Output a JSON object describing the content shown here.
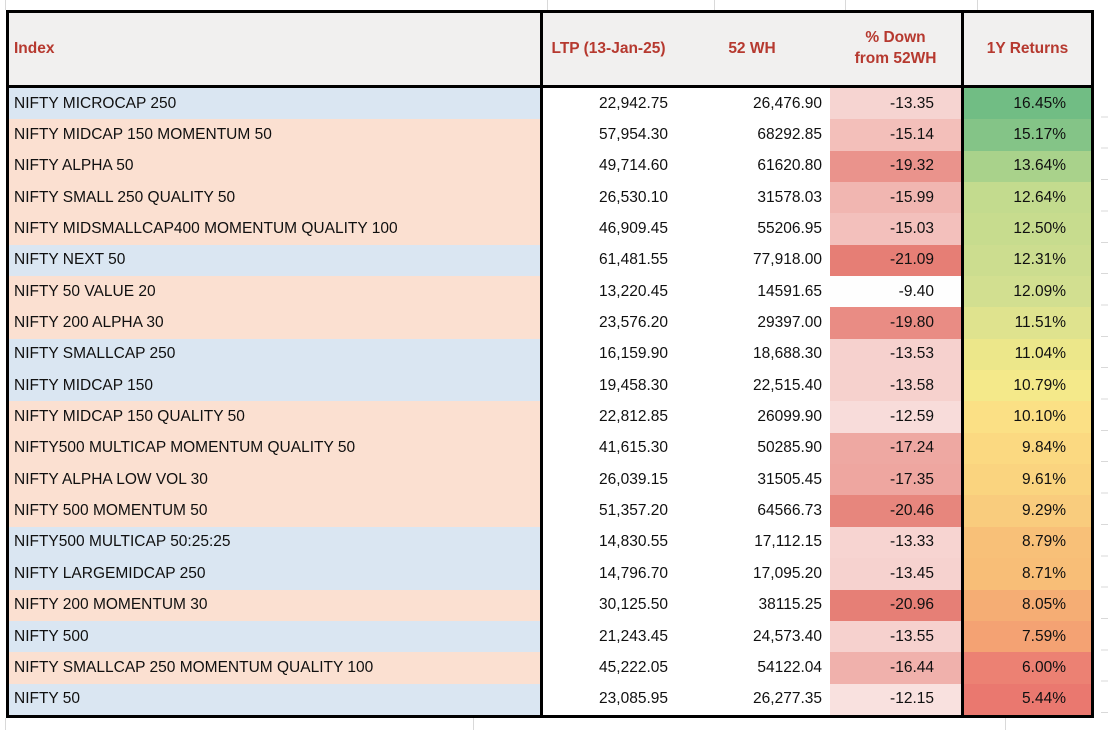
{
  "table": {
    "headers": {
      "index": "Index",
      "ltp": "LTP (13-Jan-25)",
      "wh52": "52 WH",
      "pct_down": "% Down\nfrom 52WH",
      "returns_1y": "1Y Returns"
    },
    "rows": [
      {
        "name": "NIFTY MICROCAP 250",
        "ltp": "22,942.75",
        "wh52": "26,476.90",
        "pct_down": "-13.35",
        "returns_1y": "16.45%",
        "band": "blue",
        "pct_color": "#F6D4D1",
        "ret_color": "#71BD84"
      },
      {
        "name": "NIFTY MIDCAP 150 MOMENTUM 50",
        "ltp": "57,954.30",
        "wh52": "68292.85",
        "pct_down": "-15.14",
        "returns_1y": "15.17%",
        "band": "peach",
        "pct_color": "#F3BFBA",
        "ret_color": "#84C487"
      },
      {
        "name": "NIFTY ALPHA 50",
        "ltp": "49,714.60",
        "wh52": "61620.80",
        "pct_down": "-19.32",
        "returns_1y": "13.64%",
        "band": "peach",
        "pct_color": "#EA938C",
        "ret_color": "#A9D28B"
      },
      {
        "name": "NIFTY SMALL 250 QUALITY 50",
        "ltp": "26,530.10",
        "wh52": "31578.03",
        "pct_down": "-15.99",
        "returns_1y": "12.64%",
        "band": "peach",
        "pct_color": "#F1B6B1",
        "ret_color": "#C3DB8E"
      },
      {
        "name": "NIFTY MIDSMALLCAP400 MOMENTUM QUALITY 100",
        "ltp": "46,909.45",
        "wh52": "55206.95",
        "pct_down": "-15.03",
        "returns_1y": "12.50%",
        "band": "peach",
        "pct_color": "#F3C0BC",
        "ret_color": "#C7DC8E"
      },
      {
        "name": "NIFTY NEXT 50",
        "ltp": "61,481.55",
        "wh52": "77,918.00",
        "pct_down": "-21.09",
        "returns_1y": "12.31%",
        "band": "blue",
        "pct_color": "#E67E75",
        "ret_color": "#CCDD8F"
      },
      {
        "name": "NIFTY 50 VALUE 20",
        "ltp": "13,220.45",
        "wh52": "14591.65",
        "pct_down": "-9.40",
        "returns_1y": "12.09%",
        "band": "peach",
        "pct_color": "#FEFEFE",
        "ret_color": "#D2DF90"
      },
      {
        "name": "NIFTY 200 ALPHA 30",
        "ltp": "23,576.20",
        "wh52": "29397.00",
        "pct_down": "-19.80",
        "returns_1y": "11.51%",
        "band": "peach",
        "pct_color": "#E98C84",
        "ret_color": "#DFE38E"
      },
      {
        "name": "NIFTY SMALLCAP 250",
        "ltp": "16,159.90",
        "wh52": "18,688.30",
        "pct_down": "-13.53",
        "returns_1y": "11.04%",
        "band": "blue",
        "pct_color": "#F6D1CE",
        "ret_color": "#ECE78A"
      },
      {
        "name": "NIFTY MIDCAP 150",
        "ltp": "19,458.30",
        "wh52": "22,515.40",
        "pct_down": "-13.58",
        "returns_1y": "10.79%",
        "band": "blue",
        "pct_color": "#F6D1CD",
        "ret_color": "#F4E98A"
      },
      {
        "name": "NIFTY MIDCAP 150 QUALITY 50",
        "ltp": "22,812.85",
        "wh52": "26099.90",
        "pct_down": "-12.59",
        "returns_1y": "10.10%",
        "band": "peach",
        "pct_color": "#F8DCDA",
        "ret_color": "#FBE085"
      },
      {
        "name": "NIFTY500 MULTICAP MOMENTUM QUALITY 50",
        "ltp": "41,615.30",
        "wh52": "50285.90",
        "pct_down": "-17.24",
        "returns_1y": "9.84%",
        "band": "peach",
        "pct_color": "#EEA8A2",
        "ret_color": "#FBD981"
      },
      {
        "name": "NIFTY ALPHA LOW VOL 30",
        "ltp": "26,039.15",
        "wh52": "31505.45",
        "pct_down": "-17.35",
        "returns_1y": "9.61%",
        "band": "peach",
        "pct_color": "#EEA6A0",
        "ret_color": "#FAD47F"
      },
      {
        "name": "NIFTY 500 MOMENTUM 50",
        "ltp": "51,357.20",
        "wh52": "64566.73",
        "pct_down": "-20.46",
        "returns_1y": "9.29%",
        "band": "peach",
        "pct_color": "#E7867D",
        "ret_color": "#F9CC7D"
      },
      {
        "name": "NIFTY500 MULTICAP 50:25:25",
        "ltp": "14,830.55",
        "wh52": "17,112.15",
        "pct_down": "-13.33",
        "returns_1y": "8.79%",
        "band": "blue",
        "pct_color": "#F7D4D1",
        "ret_color": "#F8C078"
      },
      {
        "name": "NIFTY LARGEMIDCAP 250",
        "ltp": "14,796.70",
        "wh52": "17,095.20",
        "pct_down": "-13.45",
        "returns_1y": "8.71%",
        "band": "blue",
        "pct_color": "#F6D2CF",
        "ret_color": "#F8BE77"
      },
      {
        "name": "NIFTY 200 MOMENTUM 30",
        "ltp": "30,125.50",
        "wh52": "38115.25",
        "pct_down": "-20.96",
        "returns_1y": "8.05%",
        "band": "peach",
        "pct_color": "#E67F76",
        "ret_color": "#F5AD74"
      },
      {
        "name": "NIFTY 500",
        "ltp": "21,243.45",
        "wh52": "24,573.40",
        "pct_down": "-13.55",
        "returns_1y": "7.59%",
        "band": "blue",
        "pct_color": "#F6D1CE",
        "ret_color": "#F4A273"
      },
      {
        "name": "NIFTY SMALLCAP 250 MOMENTUM QUALITY 100",
        "ltp": "45,222.05",
        "wh52": "54122.04",
        "pct_down": "-16.44",
        "returns_1y": "6.00%",
        "band": "peach",
        "pct_color": "#F0B1AC",
        "ret_color": "#EC8173"
      },
      {
        "name": "NIFTY 50",
        "ltp": "23,085.95",
        "wh52": "26,277.35",
        "pct_down": "-12.15",
        "returns_1y": "5.44%",
        "band": "blue",
        "pct_color": "#F9E1DF",
        "ret_color": "#EA786F"
      }
    ]
  },
  "colors": {
    "header_bg": "#F1F0EF",
    "header_text": "#B6392F",
    "border": "#000000",
    "row_bands": {
      "blue": "#DAE6F2",
      "peach": "#FBE0D1"
    },
    "pct_scale_max_red": "#E67C73",
    "returns_scale": {
      "low_red": "#EA776F",
      "mid_yellow": "#FBE085",
      "high_green": "#71BD84"
    },
    "gridline": "#D9D9D9"
  }
}
